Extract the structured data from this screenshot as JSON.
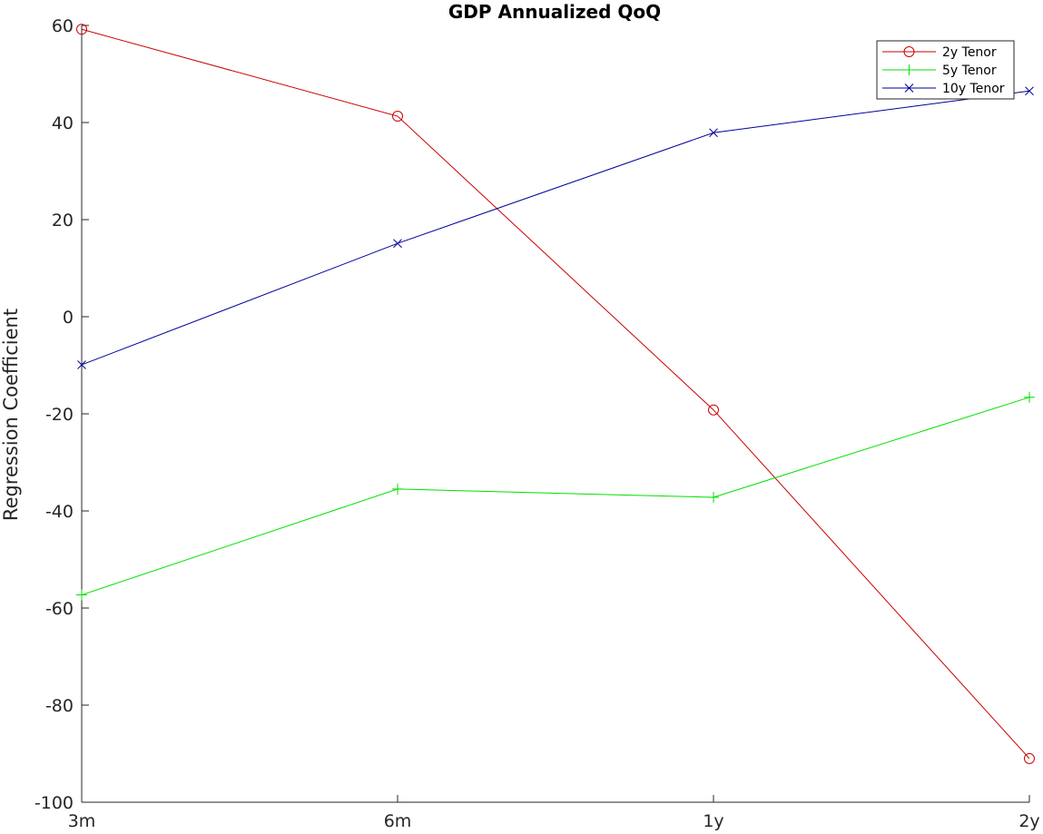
{
  "chart_data": {
    "type": "line",
    "title": "GDP Annualized QoQ",
    "xlabel": "",
    "ylabel": "Regression Coefficient",
    "categories": [
      "3m",
      "6m",
      "1y",
      "2y"
    ],
    "ylim": [
      -100,
      60
    ],
    "yticks": [
      60,
      40,
      20,
      0,
      -20,
      -40,
      -60,
      -80,
      -100
    ],
    "grid": false,
    "legend_position": "top-right",
    "series": [
      {
        "name": "2y Tenor",
        "color": "#cc0000",
        "marker": "circle",
        "values": [
          59.2,
          41.3,
          -19.2,
          -91.0
        ]
      },
      {
        "name": "5y Tenor",
        "color": "#00e000",
        "marker": "plus",
        "values": [
          -57.3,
          -35.5,
          -37.2,
          -16.6
        ]
      },
      {
        "name": "10y Tenor",
        "color": "#000099",
        "marker": "x",
        "values": [
          -9.9,
          15.1,
          37.9,
          46.5
        ]
      }
    ]
  }
}
